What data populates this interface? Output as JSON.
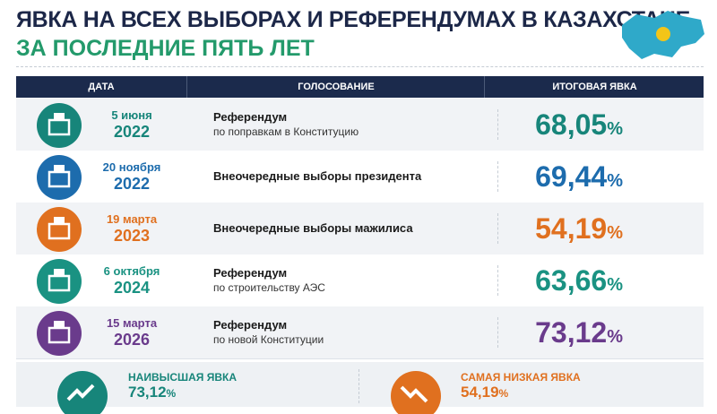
{
  "header": {
    "title": "ЯВКА НА ВСЕХ ВЫБОРАХ И РЕФЕРЕНДУМАХ В КАЗАХСТАНЕ",
    "subtitle": "ЗА ПОСЛЕДНИЕ ПЯТЬ ЛЕТ"
  },
  "table": {
    "columns": [
      "ДАТА",
      "ГОЛОСОВАНИЕ",
      "ИТОГОВАЯ ЯВКА"
    ],
    "rows": [
      {
        "day": "5 июня",
        "year": "2022",
        "title": "Референдум",
        "detail": "по поправкам в Конституцию",
        "turnout": "68,05",
        "unit": "%",
        "color": "#17857a"
      },
      {
        "day": "20 ноября",
        "year": "2022",
        "title": "Внеочередные выборы президента",
        "turnout": "69,44",
        "unit": "%",
        "color": "#1d6cad"
      },
      {
        "day": "19 марта",
        "year": "2023",
        "title": "Внеочередные выборы мажилиса",
        "turnout": "54,19",
        "unit": "%",
        "color": "#e0701f"
      },
      {
        "day": "6 октября",
        "year": "2024",
        "title": "Референдум",
        "detail": "по строительству АЭС",
        "turnout": "63,66",
        "unit": "%",
        "color": "#1a9282"
      },
      {
        "day": "15 марта",
        "year": "2026",
        "title": "Референдум",
        "detail": "по новой Конституции",
        "turnout": "73,12",
        "unit": "%",
        "color": "#6a3b8c"
      }
    ]
  },
  "summary": {
    "highest": {
      "label": "НАИВЫСШАЯ ЯВКА",
      "value": "73,12",
      "unit": "%"
    },
    "lowest": {
      "label": "САМАЯ НИЗКАЯ ЯВКА",
      "value": "54,19",
      "unit": "%"
    }
  }
}
